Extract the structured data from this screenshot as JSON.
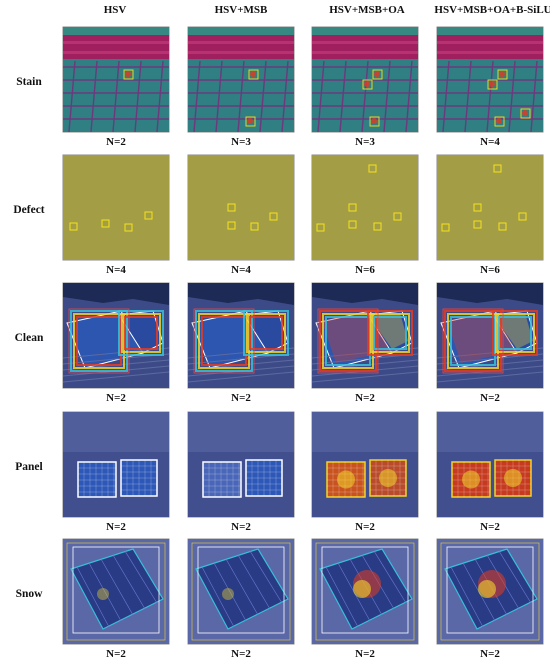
{
  "columns": [
    "HSV",
    "HSV+MSB",
    "HSV+MSB+OA",
    "HSV+MSB+OA+B-SiLU"
  ],
  "rows": [
    {
      "label": "Stain",
      "counts": [
        "N=2",
        "N=3",
        "N=3",
        "N=4"
      ]
    },
    {
      "label": "Defect",
      "counts": [
        "N=4",
        "N=4",
        "N=6",
        "N=6"
      ]
    },
    {
      "label": "Clean",
      "counts": [
        "N=2",
        "N=2",
        "N=2",
        "N=2"
      ]
    },
    {
      "label": "Panel",
      "counts": [
        "N=2",
        "N=2",
        "N=2",
        "N=2"
      ]
    },
    {
      "label": "Snow",
      "counts": [
        "N=2",
        "N=2",
        "N=2",
        "N=2"
      ]
    }
  ],
  "colors": {
    "stain_bg": "#2f7f83",
    "stain_band": "#a01f5e",
    "defect_bg": "#a39e46",
    "defect_box": "#f5e21a",
    "clean_bg": "#3c4b88",
    "panel_bg": "#414f8e",
    "snow_bg": "#5a68a8",
    "heat_hot": "#e63a1e",
    "heat_warm": "#f0d42a",
    "heat_cool": "#37c0d8"
  }
}
